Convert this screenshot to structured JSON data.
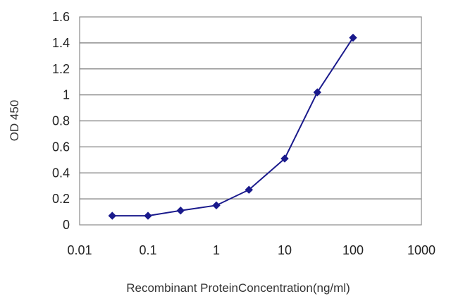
{
  "chart_data": {
    "type": "line",
    "title": "",
    "xlabel": "Recombinant ProteinConcentration(ng/ml)",
    "ylabel": "OD 450",
    "x_scale": "log",
    "xlim": [
      0.01,
      1000
    ],
    "ylim": [
      0,
      1.6
    ],
    "x_ticks": [
      "0.01",
      "0.1",
      "1",
      "10",
      "100",
      "1000"
    ],
    "y_ticks": [
      "0",
      "0.2",
      "0.4",
      "0.6",
      "0.8",
      "1",
      "1.2",
      "1.4",
      "1.6"
    ],
    "grid": "horizontal",
    "legend": "none",
    "series": [
      {
        "color": "#1a1a8c",
        "marker": "diamond",
        "x": [
          0.03,
          0.1,
          0.3,
          1,
          3,
          10,
          30,
          100
        ],
        "y": [
          0.07,
          0.07,
          0.11,
          0.15,
          0.27,
          0.51,
          1.02,
          1.44
        ]
      }
    ]
  }
}
